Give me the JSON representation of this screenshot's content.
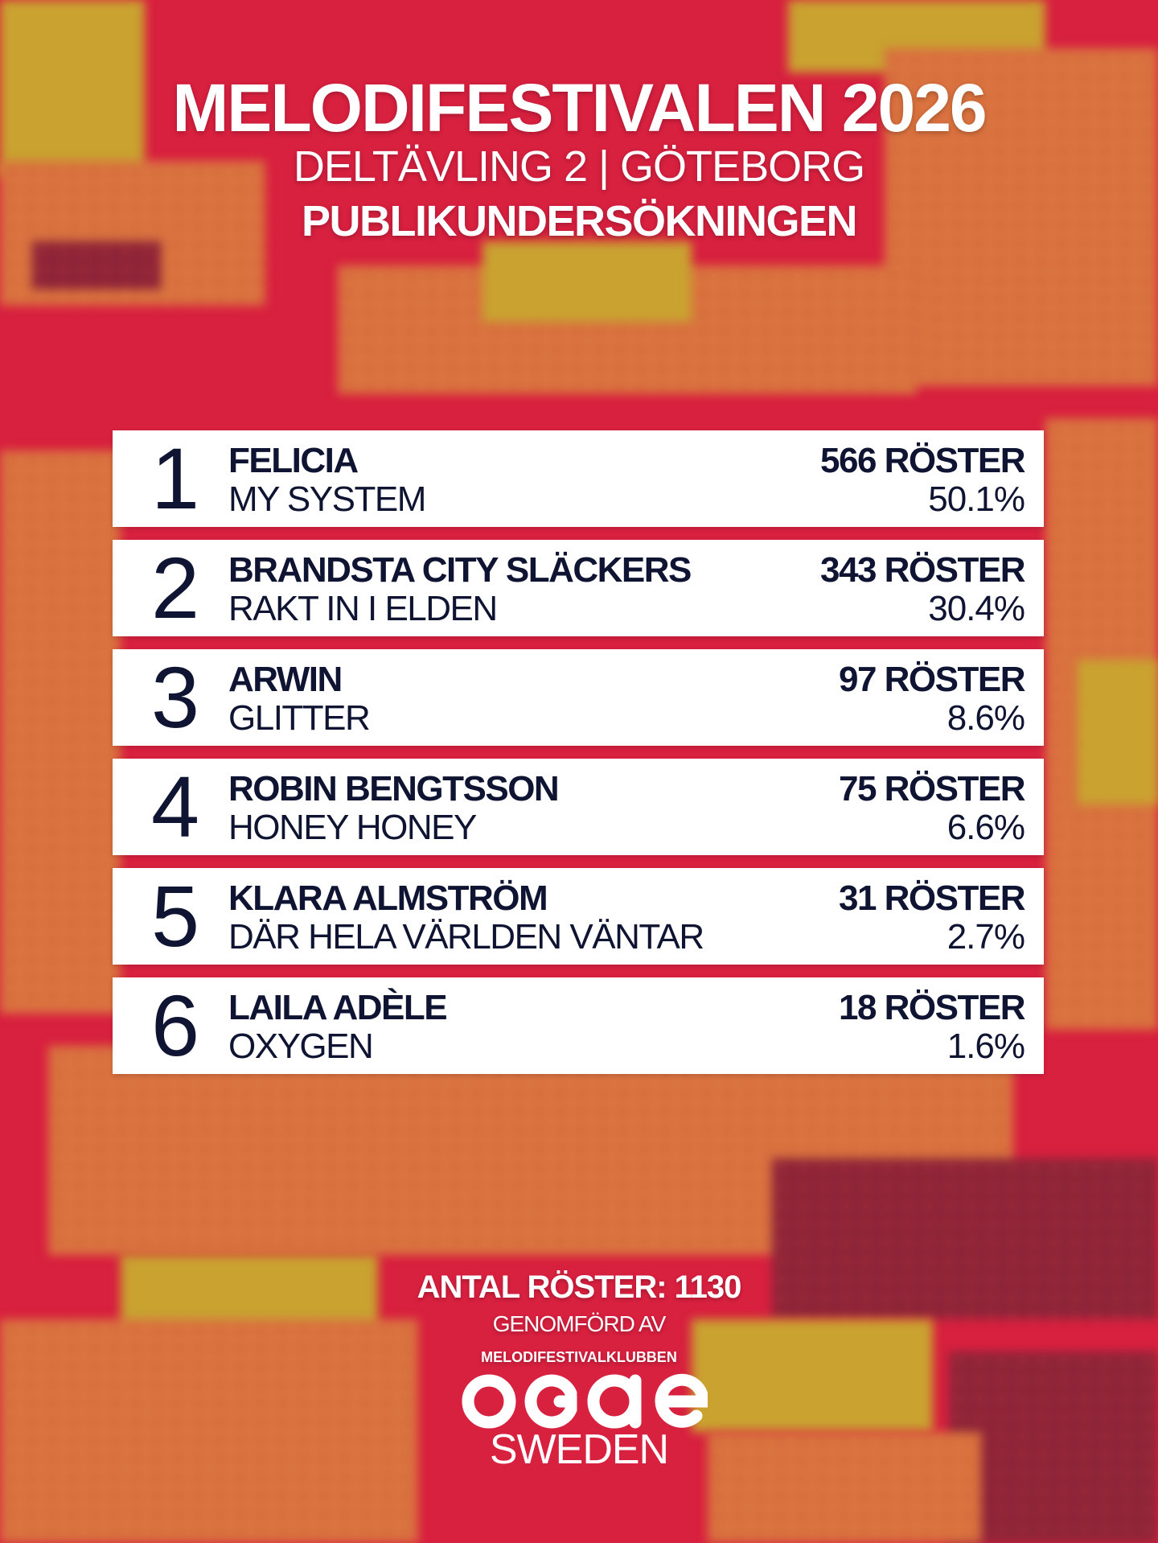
{
  "header": {
    "title": "MELODIFESTIVALEN 2026",
    "subtitle": "DELTÄVLING 2 | GÖTEBORG",
    "survey": "PUBLIKUNDERSÖKNINGEN"
  },
  "results": [
    {
      "rank": "1",
      "artist": "FELICIA",
      "song": "MY SYSTEM",
      "votes": "566 RÖSTER",
      "percent": "50.1%"
    },
    {
      "rank": "2",
      "artist": "BRANDSTA CITY SLÄCKERS",
      "song": "RAKT IN I ELDEN",
      "votes": "343 RÖSTER",
      "percent": "30.4%"
    },
    {
      "rank": "3",
      "artist": "ARWIN",
      "song": "GLITTER",
      "votes": "97 RÖSTER",
      "percent": "8.6%"
    },
    {
      "rank": "4",
      "artist": "ROBIN BENGTSSON",
      "song": "HONEY HONEY",
      "votes": "75 RÖSTER",
      "percent": "6.6%"
    },
    {
      "rank": "5",
      "artist": "KLARA ALMSTRÖM",
      "song": "DÄR HELA VÄRLDEN VÄNTAR",
      "votes": "31 RÖSTER",
      "percent": "2.7%"
    },
    {
      "rank": "6",
      "artist": "LAILA ADÈLE",
      "song": "OXYGEN",
      "votes": "18 RÖSTER",
      "percent": "1.6%"
    }
  ],
  "footer": {
    "total_votes": "ANTAL RÖSTER: 1130",
    "conducted_by": "GENOMFÖRD AV",
    "club": "MELODIFESTIVALKLUBBEN",
    "logo_text": "OGAE",
    "logo_word": "SWEDEN"
  },
  "colors": {
    "background_red": "#d8203f",
    "pattern_orange": "#d9733f",
    "mustard": "#c9a230",
    "row_text": "#0f1433",
    "row_bg": "#ffffff"
  }
}
